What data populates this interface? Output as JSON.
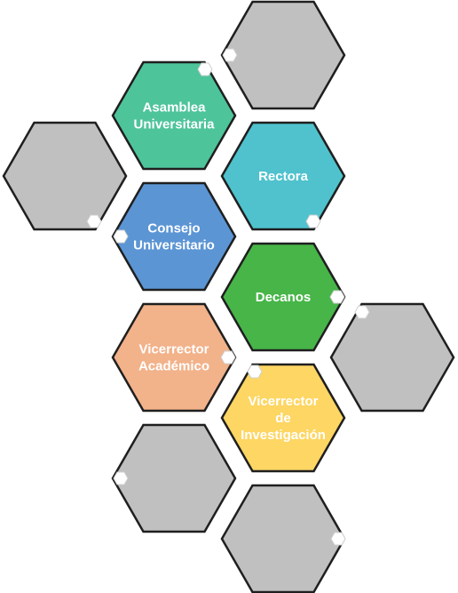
{
  "diagram": {
    "hexagons": [
      {
        "id": "gray-top",
        "lines": [],
        "color": "#c0c0c0"
      },
      {
        "id": "asamblea",
        "lines": [
          "Asamblea",
          "Universitaria"
        ],
        "color": "#4ec49b"
      },
      {
        "id": "gray-left",
        "lines": [],
        "color": "#c0c0c0"
      },
      {
        "id": "rectora",
        "lines": [
          "Rectora"
        ],
        "color": "#4fc2cd"
      },
      {
        "id": "consejo",
        "lines": [
          "Consejo",
          "Universitario"
        ],
        "color": "#5b95d4"
      },
      {
        "id": "decanos",
        "lines": [
          "Decanos"
        ],
        "color": "#47b548"
      },
      {
        "id": "gray-right",
        "lines": [],
        "color": "#c0c0c0"
      },
      {
        "id": "vicerrector-academico",
        "lines": [
          "Vicerrector",
          "Académico"
        ],
        "color": "#f2b28a"
      },
      {
        "id": "vicerrector-investigacion",
        "lines": [
          "Vicerrector",
          "de",
          "Investigación"
        ],
        "color": "#fdd663"
      },
      {
        "id": "gray-lower-left",
        "lines": [],
        "color": "#c0c0c0"
      },
      {
        "id": "gray-bottom",
        "lines": [],
        "color": "#c0c0c0"
      }
    ]
  }
}
